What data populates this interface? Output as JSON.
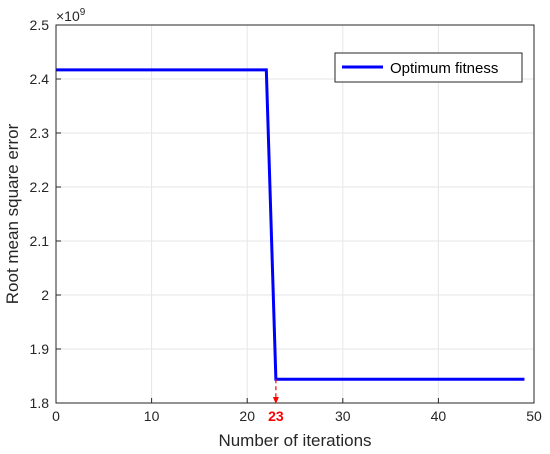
{
  "chart_data": {
    "type": "line",
    "title": "",
    "xlabel": "Number of iterations",
    "ylabel": "Root mean square error",
    "y_exponent_label": "×10",
    "y_exponent_power": "9",
    "xlim": [
      0,
      50
    ],
    "ylim": [
      1.8,
      2.5
    ],
    "x_ticks": [
      0,
      10,
      20,
      30,
      40,
      50
    ],
    "y_ticks": [
      1.8,
      1.9,
      2.0,
      2.1,
      2.2,
      2.3,
      2.4,
      2.5
    ],
    "x_tick_labels": [
      "0",
      "10",
      "20",
      "30",
      "40",
      "50"
    ],
    "y_tick_labels": [
      "1.8",
      "1.9",
      "2",
      "2.1",
      "2.2",
      "2.3",
      "2.4",
      "2.5"
    ],
    "grid": true,
    "legend_position": "top-right",
    "series": [
      {
        "name": "Optimum fitness",
        "color": "#0000ff",
        "x": [
          0,
          22,
          23,
          49
        ],
        "y": [
          2.417,
          2.417,
          1.844,
          1.844
        ]
      }
    ],
    "annotation": {
      "label": "23",
      "x": 23,
      "color": "#ff0000"
    }
  }
}
